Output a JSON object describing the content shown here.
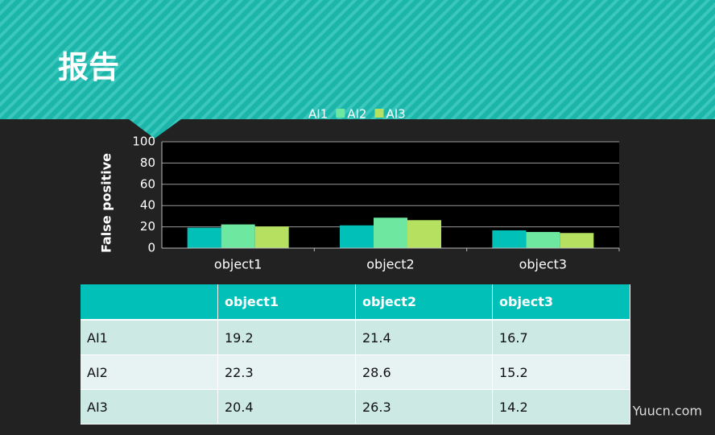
{
  "header": {
    "title": "报告"
  },
  "chart_data": {
    "type": "bar",
    "categories": [
      "object1",
      "object2",
      "object3"
    ],
    "series": [
      {
        "name": "AI1",
        "color": "#00c0b8",
        "values": [
          19.2,
          21.4,
          16.7
        ]
      },
      {
        "name": "AI2",
        "color": "#6ee8a0",
        "values": [
          22.3,
          28.6,
          15.2
        ]
      },
      {
        "name": "AI3",
        "color": "#b5e060",
        "values": [
          20.4,
          26.3,
          14.2
        ]
      }
    ],
    "ylabel": "False positive",
    "ylim": [
      0,
      100
    ],
    "yticks": [
      0,
      20,
      40,
      60,
      80,
      100
    ],
    "grid": true,
    "legend": "top"
  },
  "table": {
    "columns": [
      "object1",
      "object2",
      "object3"
    ],
    "rows": [
      {
        "label": "AI1",
        "values": [
          "19.2",
          "21.4",
          "16.7"
        ]
      },
      {
        "label": "AI2",
        "values": [
          "22.3",
          "28.6",
          "15.2"
        ]
      },
      {
        "label": "AI3",
        "values": [
          "20.4",
          "26.3",
          "14.2"
        ]
      }
    ]
  },
  "watermark": "Yuucn.com"
}
